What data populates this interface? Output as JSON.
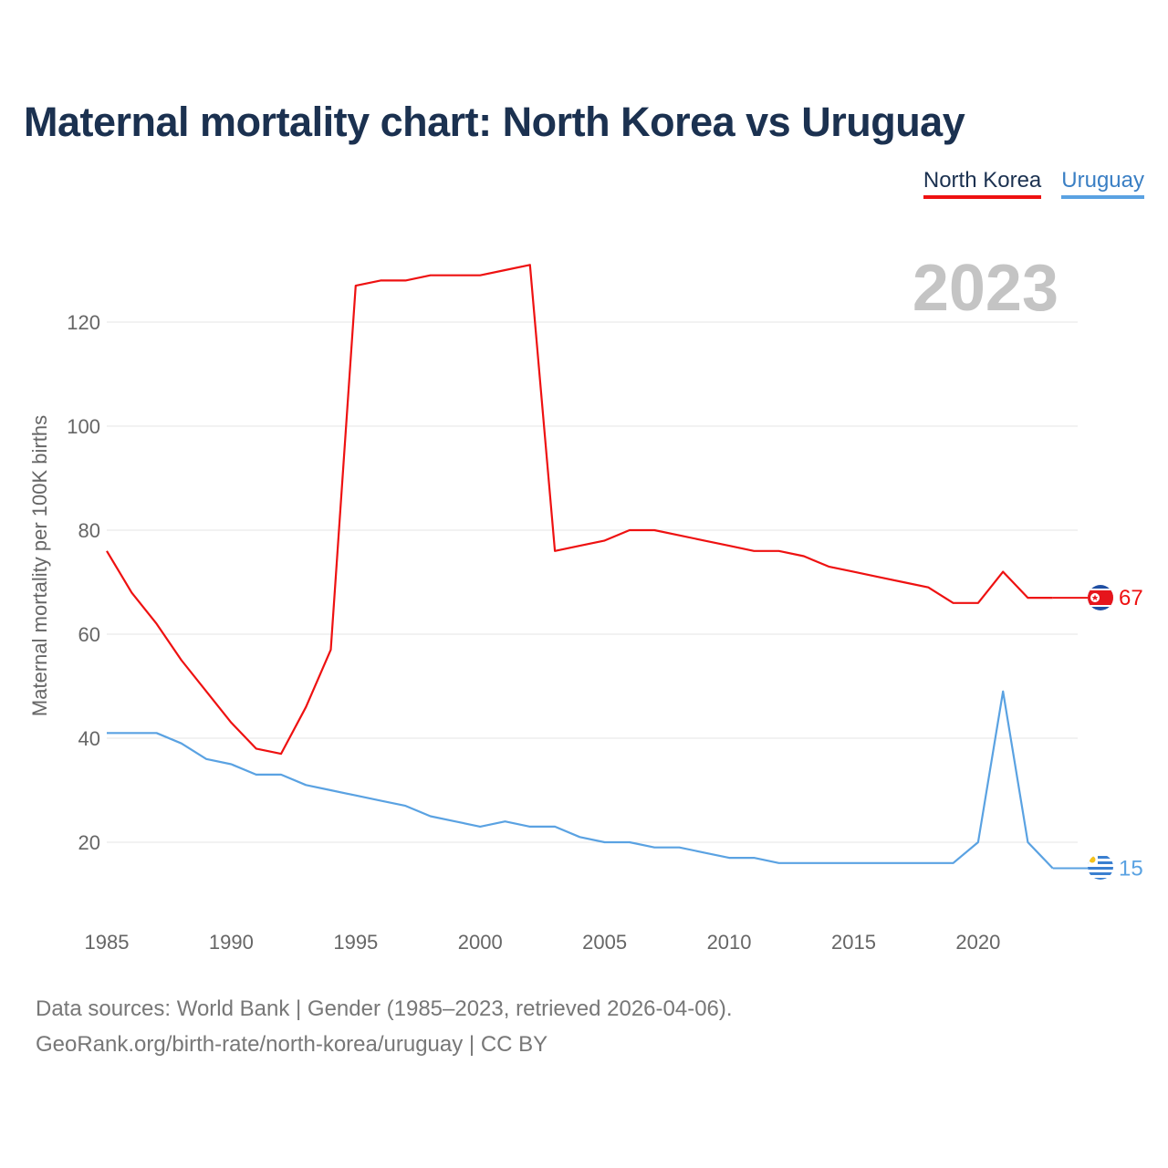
{
  "title": "Maternal mortality chart: North Korea vs Uruguay",
  "legend": {
    "north_korea": "North Korea",
    "uruguay": "Uruguay"
  },
  "footer": {
    "line1": "Data sources: World Bank | Gender (1985–2023, retrieved 2026-04-06).",
    "line2": "GeoRank.org/birth-rate/north-korea/uruguay | CC BY"
  },
  "chart_data": {
    "type": "line",
    "year_label": "2023",
    "ylabel": "Maternal mortality per 100K births",
    "xlim": [
      1985,
      2023
    ],
    "ylim": [
      10,
      135
    ],
    "yticks": [
      20,
      40,
      60,
      80,
      100,
      120
    ],
    "xticks": [
      1985,
      1990,
      1995,
      2000,
      2005,
      2010,
      2015,
      2020
    ],
    "x": [
      1985,
      1986,
      1987,
      1988,
      1989,
      1990,
      1991,
      1992,
      1993,
      1994,
      1995,
      1996,
      1997,
      1998,
      1999,
      2000,
      2001,
      2002,
      2003,
      2004,
      2005,
      2006,
      2007,
      2008,
      2009,
      2010,
      2011,
      2012,
      2013,
      2014,
      2015,
      2016,
      2017,
      2018,
      2019,
      2020,
      2021,
      2022,
      2023
    ],
    "series": [
      {
        "name": "North Korea",
        "color": "#ee1111",
        "end_label": "67",
        "values": [
          76,
          68,
          62,
          55,
          49,
          43,
          38,
          37,
          46,
          57,
          127,
          128,
          128,
          129,
          129,
          129,
          130,
          131,
          76,
          77,
          78,
          80,
          80,
          79,
          78,
          77,
          76,
          76,
          75,
          73,
          72,
          71,
          70,
          69,
          66,
          66,
          72,
          67,
          67
        ]
      },
      {
        "name": "Uruguay",
        "color": "#5aa2e2",
        "end_label": "15",
        "values": [
          41,
          41,
          41,
          39,
          36,
          35,
          33,
          33,
          31,
          30,
          29,
          28,
          27,
          25,
          24,
          23,
          24,
          23,
          23,
          21,
          20,
          20,
          19,
          19,
          18,
          17,
          17,
          16,
          16,
          16,
          16,
          16,
          16,
          16,
          16,
          20,
          49,
          20,
          15
        ]
      }
    ]
  }
}
